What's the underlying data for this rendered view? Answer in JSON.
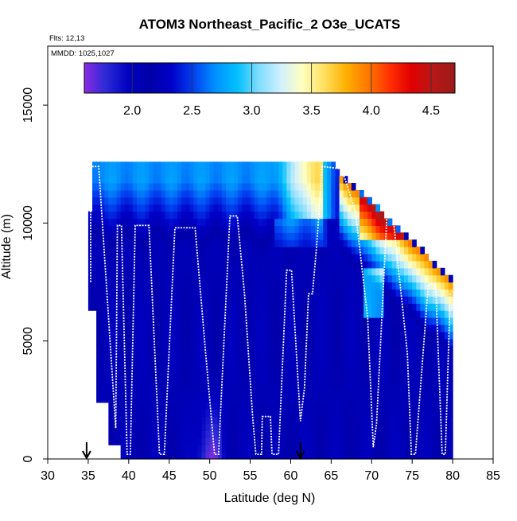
{
  "chart_data": {
    "type": "heatmap",
    "title": "ATOM3 Northeast_Pacific_2 O3e_UCATS",
    "annotations": {
      "flights": "Flts: 12,13",
      "dates": "MMDD: 1025,1027"
    },
    "xlabel": "Latitude (deg N)",
    "ylabel": "Altitude (m)",
    "xlim": [
      30,
      85
    ],
    "ylim": [
      0,
      17500
    ],
    "xticks": [
      "30",
      "35",
      "40",
      "45",
      "50",
      "55",
      "60",
      "65",
      "70",
      "75",
      "80",
      "85"
    ],
    "yticks": [
      "0",
      "5000",
      "10000",
      "15000"
    ],
    "colorbar": {
      "range": [
        1.6,
        4.7
      ],
      "tick_values": [
        2.0,
        2.5,
        3.0,
        3.5,
        4.0,
        4.5
      ],
      "tick_labels": [
        "2.0",
        "2.5",
        "3.0",
        "3.5",
        "4.0",
        "4.5"
      ],
      "colors": [
        "#8a2be2",
        "#2a2ad6",
        "#0000c0",
        "#0000a8",
        "#0000c8",
        "#0040f0",
        "#0090ff",
        "#00c0ff",
        "#80dcff",
        "#d0f0ff",
        "#ffffc0",
        "#ffe060",
        "#ffb000",
        "#ff7800",
        "#ff3000",
        "#e00000",
        "#b81818",
        "#9a1a1a"
      ]
    },
    "arrows_at_latitude": [
      34.8,
      61.2
    ],
    "flight_track": [
      {
        "x": 35.3,
        "y": 7500
      },
      {
        "x": 35.3,
        "y": 12400
      },
      {
        "x": 36.3,
        "y": 12400
      },
      {
        "x": 38.4,
        "y": 1300
      },
      {
        "x": 38.6,
        "y": 9900
      },
      {
        "x": 39.1,
        "y": 9900
      },
      {
        "x": 39.8,
        "y": 200
      },
      {
        "x": 40.2,
        "y": 200
      },
      {
        "x": 40.8,
        "y": 9900
      },
      {
        "x": 42.5,
        "y": 9900
      },
      {
        "x": 43.8,
        "y": 200
      },
      {
        "x": 44.4,
        "y": 200
      },
      {
        "x": 45.7,
        "y": 9800
      },
      {
        "x": 48.2,
        "y": 9800
      },
      {
        "x": 49.5,
        "y": 4500
      },
      {
        "x": 50.6,
        "y": 200
      },
      {
        "x": 51.1,
        "y": 200
      },
      {
        "x": 52.5,
        "y": 10300
      },
      {
        "x": 53.4,
        "y": 10300
      },
      {
        "x": 54.3,
        "y": 7000
      },
      {
        "x": 55.3,
        "y": 1800
      },
      {
        "x": 55.7,
        "y": 200
      },
      {
        "x": 56.4,
        "y": 200
      },
      {
        "x": 56.5,
        "y": 1800
      },
      {
        "x": 57.5,
        "y": 1800
      },
      {
        "x": 57.7,
        "y": 200
      },
      {
        "x": 58.5,
        "y": 200
      },
      {
        "x": 59.5,
        "y": 8000
      },
      {
        "x": 60.1,
        "y": 8000
      },
      {
        "x": 61.2,
        "y": 1600
      },
      {
        "x": 61.7,
        "y": 3000
      },
      {
        "x": 62.2,
        "y": 7000
      },
      {
        "x": 62.7,
        "y": 7000
      },
      {
        "x": 63.2,
        "y": 9000
      },
      {
        "x": 63.9,
        "y": 12400
      },
      {
        "x": 66.3,
        "y": 12300
      },
      {
        "x": 68.0,
        "y": 10500
      },
      {
        "x": 69.5,
        "y": 6000
      },
      {
        "x": 70.2,
        "y": 500
      },
      {
        "x": 70.6,
        "y": 1500
      },
      {
        "x": 71.9,
        "y": 10400
      },
      {
        "x": 72.6,
        "y": 10400
      },
      {
        "x": 74.4,
        "y": 4500
      },
      {
        "x": 74.9,
        "y": 200
      },
      {
        "x": 75.4,
        "y": 200
      },
      {
        "x": 77.0,
        "y": 7400
      },
      {
        "x": 77.9,
        "y": 7400
      },
      {
        "x": 78.7,
        "y": 200
      },
      {
        "x": 79.1,
        "y": 200
      },
      {
        "x": 79.7,
        "y": 7000
      }
    ],
    "grid": false,
    "legend": "colorbar at top inside plot"
  }
}
